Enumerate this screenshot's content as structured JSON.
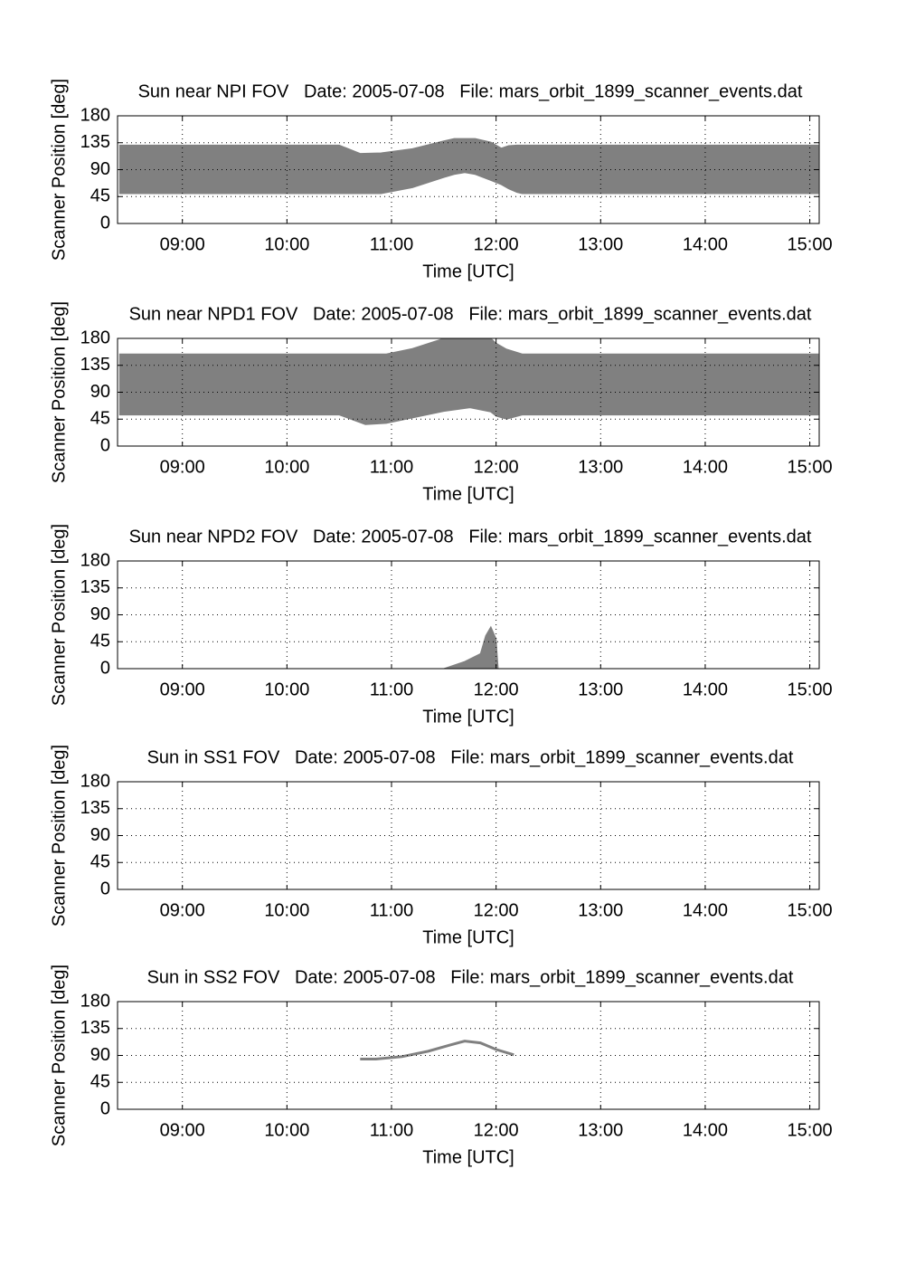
{
  "chart_data": [
    {
      "type": "band",
      "title": "Sun near NPI FOV   Date: 2005-07-08   File: mars_orbit_1899_scanner_events.dat",
      "xlabel": "Time [UTC]",
      "ylabel": "Scanner Position [deg]",
      "color": "#808080",
      "grid": true,
      "xlim": [
        8.38,
        15.09
      ],
      "ylim": [
        0,
        180
      ],
      "xticks": [
        {
          "value": 9,
          "label": "09:00"
        },
        {
          "value": 10,
          "label": "10:00"
        },
        {
          "value": 11,
          "label": "11:00"
        },
        {
          "value": 12,
          "label": "12:00"
        },
        {
          "value": 13,
          "label": "13:00"
        },
        {
          "value": 14,
          "label": "14:00"
        },
        {
          "value": 15,
          "label": "15:00"
        }
      ],
      "yticks": [
        0,
        45,
        90,
        135,
        180
      ],
      "x": [
        8.4,
        10.5,
        10.7,
        10.9,
        11.2,
        11.5,
        11.6,
        11.7,
        11.8,
        11.95,
        12.05,
        12.12,
        12.2,
        12.25,
        15.08
      ],
      "upper": [
        131,
        131,
        117,
        118,
        125,
        138,
        142,
        142,
        142,
        136,
        126,
        130,
        131,
        131,
        131
      ],
      "lower": [
        50,
        50,
        50,
        50,
        60,
        77,
        82,
        85,
        82,
        72,
        65,
        58,
        52,
        50,
        50
      ]
    },
    {
      "type": "band",
      "title": "Sun near NPD1 FOV   Date: 2005-07-08   File: mars_orbit_1899_scanner_events.dat",
      "xlabel": "Time [UTC]",
      "ylabel": "Scanner Position [deg]",
      "color": "#808080",
      "grid": true,
      "xlim": [
        8.38,
        15.09
      ],
      "ylim": [
        0,
        180
      ],
      "xticks": [
        {
          "value": 9,
          "label": "09:00"
        },
        {
          "value": 10,
          "label": "10:00"
        },
        {
          "value": 11,
          "label": "11:00"
        },
        {
          "value": 12,
          "label": "12:00"
        },
        {
          "value": 13,
          "label": "13:00"
        },
        {
          "value": 14,
          "label": "14:00"
        },
        {
          "value": 15,
          "label": "15:00"
        }
      ],
      "yticks": [
        0,
        45,
        90,
        135,
        180
      ],
      "x": [
        8.4,
        10.5,
        10.75,
        10.95,
        11.2,
        11.5,
        11.75,
        11.95,
        12.0,
        12.1,
        12.25,
        15.08
      ],
      "upper": [
        154,
        154,
        154,
        154,
        163,
        180,
        180,
        180,
        172,
        162,
        154,
        154
      ],
      "lower": [
        52,
        52,
        36,
        38,
        47,
        58,
        64,
        57,
        50,
        45,
        52,
        52
      ]
    },
    {
      "type": "band",
      "title": "Sun near NPD2 FOV   Date: 2005-07-08   File: mars_orbit_1899_scanner_events.dat",
      "xlabel": "Time [UTC]",
      "ylabel": "Scanner Position [deg]",
      "color": "#808080",
      "grid": true,
      "xlim": [
        8.38,
        15.09
      ],
      "ylim": [
        0,
        180
      ],
      "xticks": [
        {
          "value": 9,
          "label": "09:00"
        },
        {
          "value": 10,
          "label": "10:00"
        },
        {
          "value": 11,
          "label": "11:00"
        },
        {
          "value": 12,
          "label": "12:00"
        },
        {
          "value": 13,
          "label": "13:00"
        },
        {
          "value": 14,
          "label": "14:00"
        },
        {
          "value": 15,
          "label": "15:00"
        }
      ],
      "yticks": [
        0,
        45,
        90,
        135,
        180
      ],
      "x": [
        11.5,
        11.7,
        11.85,
        11.9,
        11.95,
        12.0,
        12.02
      ],
      "upper": [
        0,
        12,
        25,
        55,
        70,
        50,
        0
      ],
      "lower": [
        0,
        0,
        0,
        0,
        0,
        0,
        0
      ]
    },
    {
      "type": "line",
      "title": "Sun in SS1 FOV   Date: 2005-07-08   File: mars_orbit_1899_scanner_events.dat",
      "xlabel": "Time [UTC]",
      "ylabel": "Scanner Position [deg]",
      "color": "#808080",
      "grid": true,
      "xlim": [
        8.38,
        15.09
      ],
      "ylim": [
        0,
        180
      ],
      "xticks": [
        {
          "value": 9,
          "label": "09:00"
        },
        {
          "value": 10,
          "label": "10:00"
        },
        {
          "value": 11,
          "label": "11:00"
        },
        {
          "value": 12,
          "label": "12:00"
        },
        {
          "value": 13,
          "label": "13:00"
        },
        {
          "value": 14,
          "label": "14:00"
        },
        {
          "value": 15,
          "label": "15:00"
        }
      ],
      "yticks": [
        0,
        45,
        90,
        135,
        180
      ]
    },
    {
      "type": "line",
      "title": "Sun in SS2 FOV   Date: 2005-07-08   File: mars_orbit_1899_scanner_events.dat",
      "xlabel": "Time [UTC]",
      "ylabel": "Scanner Position [deg]",
      "color": "#808080",
      "grid": true,
      "xlim": [
        8.38,
        15.09
      ],
      "ylim": [
        0,
        180
      ],
      "xticks": [
        {
          "value": 9,
          "label": "09:00"
        },
        {
          "value": 10,
          "label": "10:00"
        },
        {
          "value": 11,
          "label": "11:00"
        },
        {
          "value": 12,
          "label": "12:00"
        },
        {
          "value": 13,
          "label": "13:00"
        },
        {
          "value": 14,
          "label": "14:00"
        },
        {
          "value": 15,
          "label": "15:00"
        }
      ],
      "yticks": [
        0,
        45,
        90,
        135,
        180
      ],
      "x": [
        10.7,
        10.85,
        11.1,
        11.35,
        11.55,
        11.7,
        11.85,
        12.0,
        12.17
      ],
      "values": [
        84,
        84,
        88,
        97,
        107,
        114,
        111,
        100,
        91
      ]
    }
  ]
}
